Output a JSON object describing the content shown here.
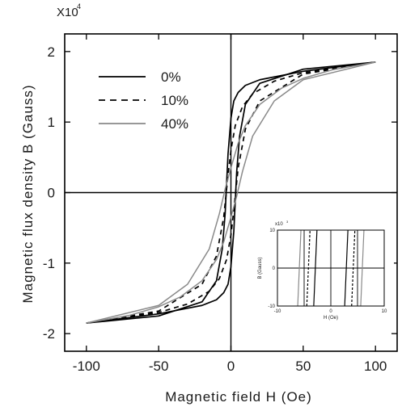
{
  "chart_data": [
    {
      "type": "line",
      "title": "",
      "xlabel": "Magnetic field  H (Oe)",
      "ylabel": "Magnetic flux density  B (Gauss)",
      "y_multiplier_label": "X10",
      "y_multiplier_exponent": "4",
      "xlim": [
        -115,
        115
      ],
      "ylim": [
        -2.25,
        2.25
      ],
      "x_ticks": [
        -100,
        -50,
        0,
        50,
        100
      ],
      "x_tick_labels": [
        "-100",
        "-50",
        "0",
        "50",
        "100"
      ],
      "y_ticks": [
        -2,
        -1,
        0,
        1,
        2
      ],
      "y_tick_labels": [
        "-2",
        "-1",
        "0",
        "1",
        "2"
      ],
      "zero_lines": true,
      "legend_position": "top-left",
      "series": [
        {
          "name": "0%",
          "style": "solid",
          "color": "#000000",
          "upper_branch": {
            "x": [
              -100,
              -50,
              -20,
              -10,
              -6,
              -4,
              -2,
              0,
              2,
              5,
              10,
              20,
              50,
              100
            ],
            "y": [
              -1.85,
              -1.75,
              -1.55,
              -1.25,
              -0.8,
              -0.3,
              0.55,
              1.05,
              1.3,
              1.42,
              1.52,
              1.6,
              1.72,
              1.85
            ]
          },
          "lower_branch": {
            "x": [
              -100,
              -50,
              -20,
              -10,
              -5,
              -2,
              0,
              2,
              4,
              6,
              10,
              20,
              50,
              100
            ],
            "y": [
              -1.85,
              -1.72,
              -1.6,
              -1.52,
              -1.42,
              -1.3,
              -1.05,
              -0.55,
              0.3,
              0.8,
              1.25,
              1.55,
              1.75,
              1.85
            ]
          }
        },
        {
          "name": "10%",
          "style": "dashed",
          "color": "#000000",
          "upper_branch": {
            "x": [
              -100,
              -50,
              -20,
              -10,
              -5,
              -2,
              0,
              3,
              8,
              15,
              30,
              50,
              100
            ],
            "y": [
              -1.85,
              -1.68,
              -1.3,
              -0.9,
              -0.35,
              0.25,
              0.6,
              0.95,
              1.22,
              1.4,
              1.58,
              1.7,
              1.85
            ]
          },
          "lower_branch": {
            "x": [
              -100,
              -50,
              -30,
              -15,
              -8,
              -3,
              0,
              2,
              5,
              10,
              20,
              50,
              100
            ],
            "y": [
              -1.85,
              -1.7,
              -1.58,
              -1.4,
              -1.22,
              -0.95,
              -0.6,
              -0.25,
              0.35,
              0.9,
              1.3,
              1.68,
              1.85
            ]
          }
        },
        {
          "name": "40%",
          "style": "solid",
          "color": "#8a8a8a",
          "upper_branch": {
            "x": [
              -100,
              -50,
              -30,
              -15,
              -8,
              -4,
              0,
              5,
              10,
              20,
              35,
              50,
              70,
              100
            ],
            "y": [
              -1.85,
              -1.6,
              -1.3,
              -0.8,
              -0.3,
              0.05,
              0.35,
              0.7,
              0.95,
              1.25,
              1.48,
              1.62,
              1.74,
              1.85
            ]
          },
          "lower_branch": {
            "x": [
              -100,
              -70,
              -50,
              -35,
              -20,
              -10,
              -5,
              0,
              4,
              8,
              15,
              30,
              50,
              100
            ],
            "y": [
              -1.85,
              -1.74,
              -1.62,
              -1.48,
              -1.25,
              -0.95,
              -0.7,
              -0.35,
              -0.05,
              0.3,
              0.8,
              1.3,
              1.6,
              1.85
            ]
          }
        }
      ]
    },
    {
      "type": "line",
      "title": "",
      "xlabel": "H (Oe)",
      "ylabel": "B (Gauss)",
      "y_multiplier_label": "x10",
      "y_multiplier_exponent": "3",
      "xlim": [
        -10,
        10
      ],
      "ylim": [
        -10,
        10
      ],
      "x_ticks": [
        -10,
        0,
        10
      ],
      "x_tick_labels": [
        "-10",
        "0",
        "10"
      ],
      "y_ticks": [
        -10,
        0,
        10
      ],
      "y_tick_labels": [
        "-10",
        "0",
        "10"
      ],
      "grid": true,
      "series": [
        {
          "name": "0%",
          "style": "solid",
          "color": "#000000",
          "coercivity": 2.9
        },
        {
          "name": "10%",
          "style": "dashed",
          "color": "#000000",
          "coercivity": 4.2
        },
        {
          "name": "40%",
          "style": "solid",
          "color": "#8a8a8a",
          "coercivity": 5.9
        }
      ]
    }
  ]
}
